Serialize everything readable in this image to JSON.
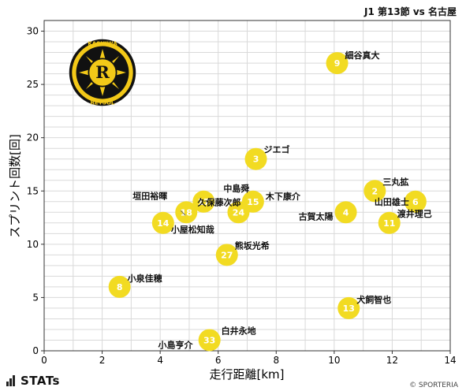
{
  "header": {
    "title": "J1 第13節 vs 名古屋"
  },
  "footer": {
    "logo_text": "STATs",
    "credit": "© SPORTERIA"
  },
  "team_logo": {
    "top_text": "KASHIWA",
    "bottom_text": "REYSOL",
    "letter": "R"
  },
  "colors": {
    "marker": "#f2db22",
    "grid": "#d9d9d9",
    "crest_black": "#111111",
    "crest_yellow": "#f3c918"
  },
  "chart_data": {
    "type": "scatter",
    "xlabel": "走行距離[km]",
    "ylabel": "スプリント回数[回]",
    "xlim": [
      0,
      14
    ],
    "ylim": [
      0,
      31
    ],
    "xticks": [
      0,
      2,
      4,
      6,
      8,
      10,
      12,
      14
    ],
    "yticks": [
      0,
      5,
      10,
      15,
      20,
      25,
      30
    ],
    "grid": true,
    "points": [
      {
        "number": "9",
        "name": "細谷真大",
        "x": 10.1,
        "y": 27
      },
      {
        "number": "3",
        "name": "ジエゴ",
        "x": 7.3,
        "y": 18
      },
      {
        "number": "2",
        "name": "三丸拡",
        "x": 11.4,
        "y": 15
      },
      {
        "number": "6",
        "name": "山田雄士",
        "x": 12.8,
        "y": 14
      },
      {
        "number": "4",
        "name": "古賀太陽",
        "x": 10.4,
        "y": 13
      },
      {
        "number": "11",
        "name": "渡井理己",
        "x": 11.9,
        "y": 12
      },
      {
        "number": "15",
        "name": "木下康介",
        "x": 7.2,
        "y": 14
      },
      {
        "number": "24",
        "name": "久保藤次郎",
        "x": 6.7,
        "y": 13
      },
      {
        "number": "17",
        "name": "中島舜",
        "x": 5.5,
        "y": 14
      },
      {
        "number": "18",
        "name": "垣田裕暉",
        "x": 4.9,
        "y": 13
      },
      {
        "number": "14",
        "name": "小屋松知哉",
        "x": 4.1,
        "y": 12
      },
      {
        "number": "27",
        "name": "熊坂光希",
        "x": 6.3,
        "y": 9
      },
      {
        "number": "8",
        "name": "小泉佳穂",
        "x": 2.6,
        "y": 6
      },
      {
        "number": "13",
        "name": "犬飼智也",
        "x": 10.5,
        "y": 4
      },
      {
        "number": "33",
        "name": "白井永地",
        "x": 5.7,
        "y": 1
      },
      {
        "number": "",
        "name": "小島亨介",
        "x": 4.5,
        "y": 0.2
      }
    ]
  }
}
